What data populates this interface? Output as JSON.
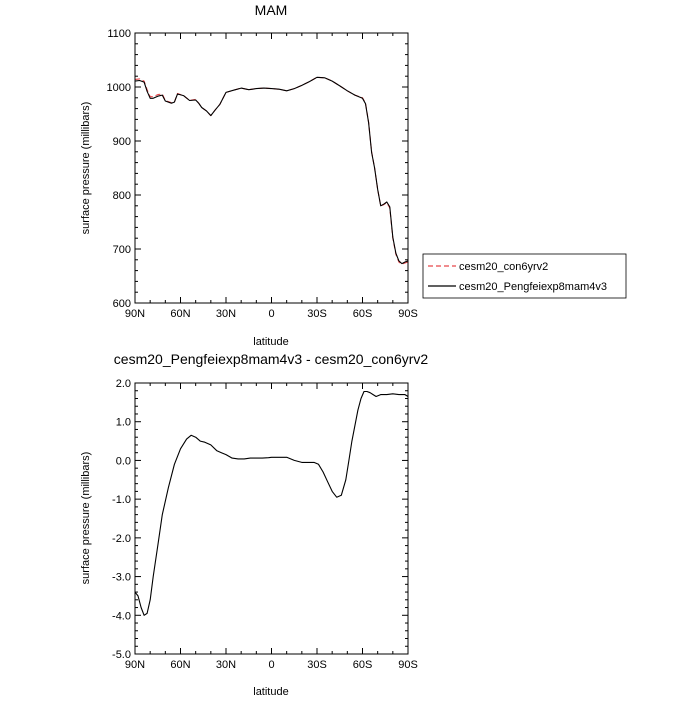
{
  "chart_data": [
    {
      "type": "line",
      "title": "MAM",
      "xlabel": "latitude",
      "ylabel": "surface pressure (millibars)",
      "xlim": [
        90,
        -90
      ],
      "ylim": [
        600,
        1100
      ],
      "x_ticks": [
        {
          "value": 90,
          "label": "90N"
        },
        {
          "value": 60,
          "label": "60N"
        },
        {
          "value": 30,
          "label": "30N"
        },
        {
          "value": 0,
          "label": "0"
        },
        {
          "value": -30,
          "label": "30S"
        },
        {
          "value": -60,
          "label": "60S"
        },
        {
          "value": -90,
          "label": "90S"
        }
      ],
      "y_ticks": [
        {
          "value": 600,
          "label": "600"
        },
        {
          "value": 700,
          "label": "700"
        },
        {
          "value": 800,
          "label": "800"
        },
        {
          "value": 900,
          "label": "900"
        },
        {
          "value": 1000,
          "label": "1000"
        },
        {
          "value": 1100,
          "label": "1100"
        }
      ],
      "legend": {
        "placement": "right",
        "entries": [
          {
            "label": "cesm20_con6yrv2",
            "color": "#e8474a",
            "dash": "dashed"
          },
          {
            "label": "cesm20_Pengfeiexp8mam4v3",
            "color": "#000000",
            "dash": "solid"
          }
        ]
      },
      "series": [
        {
          "name": "cesm20_con6yrv2",
          "color": "#e8474a",
          "style": "dashed",
          "x": [
            90,
            87,
            84,
            82,
            80,
            78,
            75,
            72,
            70,
            66,
            64,
            62,
            58,
            54,
            50,
            48,
            46,
            43,
            40,
            37,
            34,
            30,
            25,
            20,
            15,
            10,
            5,
            0,
            -5,
            -10,
            -15,
            -20,
            -25,
            -30,
            -35,
            -40,
            -45,
            -50,
            -55,
            -60,
            -62,
            -64,
            -66,
            -68,
            -70,
            -72,
            -74,
            -76,
            -78,
            -80,
            -82,
            -84,
            -86,
            -88,
            -90
          ],
          "y": [
            1014,
            1015,
            1011,
            995,
            982,
            982,
            986,
            987,
            975,
            971,
            972,
            988,
            984,
            975,
            977,
            970,
            962,
            956,
            947,
            958,
            968,
            990,
            994,
            998,
            995,
            997,
            998,
            997,
            996,
            993,
            997,
            1003,
            1010,
            1018,
            1017,
            1011,
            1002,
            993,
            985,
            980,
            970,
            935,
            880,
            850,
            810,
            780,
            782,
            786,
            776,
            720,
            690,
            676,
            672,
            674,
            676
          ]
        },
        {
          "name": "cesm20_Pengfeiexp8mam4v3",
          "color": "#000000",
          "style": "solid",
          "x": [
            90,
            87,
            84,
            82,
            80,
            78,
            75,
            72,
            70,
            66,
            64,
            62,
            58,
            54,
            50,
            48,
            46,
            43,
            40,
            37,
            34,
            30,
            25,
            20,
            15,
            10,
            5,
            0,
            -5,
            -10,
            -15,
            -20,
            -25,
            -30,
            -35,
            -40,
            -45,
            -50,
            -55,
            -60,
            -62,
            -64,
            -66,
            -68,
            -70,
            -72,
            -74,
            -76,
            -78,
            -80,
            -82,
            -84,
            -86,
            -88,
            -90
          ],
          "y": [
            1011,
            1012,
            1009,
            992,
            979,
            979,
            983,
            985,
            974,
            970,
            972,
            987,
            984,
            975,
            976,
            970,
            962,
            956,
            947,
            958,
            968,
            990,
            994,
            998,
            995,
            997,
            998,
            997,
            996,
            993,
            997,
            1003,
            1010,
            1018,
            1017,
            1011,
            1002,
            993,
            985,
            979,
            969,
            934,
            879,
            850,
            810,
            780,
            783,
            787,
            778,
            722,
            692,
            678,
            673,
            676,
            678
          ]
        }
      ]
    },
    {
      "type": "line",
      "title": "cesm20_Pengfeiexp8mam4v3 - cesm20_con6yrv2",
      "xlabel": "latitude",
      "ylabel": "surface pressure (millibars)",
      "xlim": [
        90,
        -90
      ],
      "ylim": [
        -5.0,
        2.0
      ],
      "x_ticks": [
        {
          "value": 90,
          "label": "90N"
        },
        {
          "value": 60,
          "label": "60N"
        },
        {
          "value": 30,
          "label": "30N"
        },
        {
          "value": 0,
          "label": "0"
        },
        {
          "value": -30,
          "label": "30S"
        },
        {
          "value": -60,
          "label": "60S"
        },
        {
          "value": -90,
          "label": "90S"
        }
      ],
      "y_ticks": [
        {
          "value": 2.0,
          "label": "2.0"
        },
        {
          "value": 1.0,
          "label": "1.0"
        },
        {
          "value": 0.0,
          "label": "0.0"
        },
        {
          "value": -1.0,
          "label": "-1.0"
        },
        {
          "value": -2.0,
          "label": "-2.0"
        },
        {
          "value": -3.0,
          "label": "-3.0"
        },
        {
          "value": -4.0,
          "label": "-4.0"
        },
        {
          "value": -5.0,
          "label": "-5.0"
        }
      ],
      "series": [
        {
          "color": "#000000",
          "style": "solid",
          "x": [
            90,
            88,
            86,
            84,
            82,
            80,
            78,
            75,
            72,
            68,
            64,
            60,
            56,
            53,
            50,
            47,
            44,
            40,
            36,
            33,
            30,
            26,
            22,
            18,
            14,
            10,
            6,
            2,
            0,
            -5,
            -10,
            -15,
            -20,
            -25,
            -28,
            -31,
            -34,
            -37,
            -40,
            -43,
            -46,
            -49,
            -51,
            -53,
            -55,
            -57,
            -59,
            -61,
            -63,
            -65,
            -67,
            -69,
            -72,
            -76,
            -80,
            -84,
            -88,
            -90
          ],
          "y": [
            -3.4,
            -3.5,
            -3.8,
            -4.0,
            -3.95,
            -3.6,
            -3.0,
            -2.2,
            -1.4,
            -0.7,
            -0.1,
            0.3,
            0.55,
            0.65,
            0.6,
            0.5,
            0.47,
            0.4,
            0.25,
            0.2,
            0.15,
            0.06,
            0.04,
            0.04,
            0.06,
            0.06,
            0.06,
            0.07,
            0.08,
            0.08,
            0.08,
            0.0,
            -0.05,
            -0.05,
            -0.05,
            -0.1,
            -0.3,
            -0.55,
            -0.8,
            -0.95,
            -0.9,
            -0.5,
            0.0,
            0.5,
            0.9,
            1.3,
            1.6,
            1.78,
            1.78,
            1.75,
            1.7,
            1.65,
            1.7,
            1.7,
            1.72,
            1.7,
            1.7,
            1.65
          ]
        }
      ]
    }
  ]
}
